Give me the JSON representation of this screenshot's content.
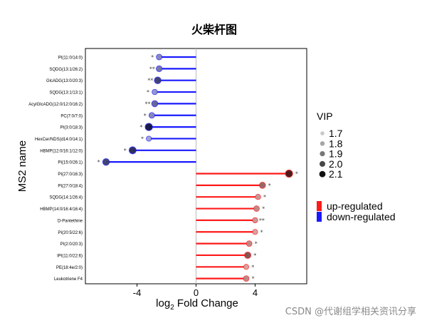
{
  "chart_data": {
    "type": "lollipop",
    "title": "火柴杆图",
    "xlabel_prefix": "log",
    "xlabel_sub": "2",
    "xlabel_suffix": " Fold Change",
    "ylabel": "MS2 name",
    "xlim": [
      -7.5,
      7.5
    ],
    "xticks": [
      -4,
      0,
      4
    ],
    "xtick_labels": [
      "-4",
      "0",
      "4"
    ],
    "grid": false,
    "legend_position": "right",
    "vip_legend": {
      "title": "VIP",
      "entries": [
        {
          "label": "1.7",
          "size": 1.7,
          "color": "#c8c8c8"
        },
        {
          "label": "1.8",
          "size": 1.8,
          "color": "#a6a6a6"
        },
        {
          "label": "1.9",
          "size": 1.9,
          "color": "#777777"
        },
        {
          "label": "2.0",
          "size": 2.0,
          "color": "#474747"
        },
        {
          "label": "2.1",
          "size": 2.1,
          "color": "#111111"
        }
      ]
    },
    "regulation_legend": {
      "entries": [
        {
          "label": "up-regulated",
          "color": "#ff1a1a"
        },
        {
          "label": "down-regulated",
          "color": "#1a1aff"
        }
      ]
    },
    "colors": {
      "up": "#ff1a1a",
      "down": "#1a1aff"
    },
    "points": [
      {
        "name": "PI(11:0/14:0)",
        "fc": -2.5,
        "vip": 1.8,
        "sig": "*",
        "reg": "down"
      },
      {
        "name": "SQDG(13:1/26:2)",
        "fc": -2.5,
        "vip": 1.85,
        "sig": "**",
        "reg": "down"
      },
      {
        "name": "GlcADG(13:0/20:3)",
        "fc": -2.6,
        "vip": 2.0,
        "sig": "**",
        "reg": "down"
      },
      {
        "name": "SQDG(13:1/13:1)",
        "fc": -2.8,
        "vip": 1.75,
        "sig": "*",
        "reg": "down"
      },
      {
        "name": "AcylGlcADG(12:0/12:0/16:2)",
        "fc": -2.8,
        "vip": 1.9,
        "sig": "**",
        "reg": "down"
      },
      {
        "name": "PC(7:0/7:0)",
        "fc": -3.0,
        "vip": 1.8,
        "sig": "*",
        "reg": "down"
      },
      {
        "name": "PI(3:0/18:3)",
        "fc": -3.2,
        "vip": 2.1,
        "sig": "*",
        "reg": "down"
      },
      {
        "name": "HexCer/NDS(d14:0/14:1)",
        "fc": -3.2,
        "vip": 1.7,
        "sig": "*",
        "reg": "down"
      },
      {
        "name": "HBMP(12:0/16:1/12:0)",
        "fc": -4.3,
        "vip": 2.05,
        "sig": "*",
        "reg": "down"
      },
      {
        "name": "PI(15:0/26:1)",
        "fc": -6.1,
        "vip": 2.0,
        "sig": "*",
        "reg": "down"
      },
      {
        "name": "PI(27:0/16:3)",
        "fc": 6.3,
        "vip": 2.1,
        "sig": "*",
        "reg": "up"
      },
      {
        "name": "PI(27:0/18:4)",
        "fc": 4.5,
        "vip": 1.9,
        "sig": "*",
        "reg": "up"
      },
      {
        "name": "SQDG(14:1/26:4)",
        "fc": 4.2,
        "vip": 1.75,
        "sig": "*",
        "reg": "up"
      },
      {
        "name": "HBMP(14:0/16:4/16:4)",
        "fc": 4.1,
        "vip": 1.8,
        "sig": "*",
        "reg": "up"
      },
      {
        "name": "D-Pantethine",
        "fc": 4.0,
        "vip": 1.75,
        "sig": "**",
        "reg": "up"
      },
      {
        "name": "PI(20:5/22:6)",
        "fc": 4.0,
        "vip": 1.7,
        "sig": "*",
        "reg": "up"
      },
      {
        "name": "PI(2:0/20:3)",
        "fc": 3.6,
        "vip": 1.8,
        "sig": "*",
        "reg": "up"
      },
      {
        "name": "IPI(11:0/22:6)",
        "fc": 3.5,
        "vip": 1.95,
        "sig": "*",
        "reg": "up"
      },
      {
        "name": "PE(18:4e/2:0)",
        "fc": 3.4,
        "vip": 1.7,
        "sig": "*",
        "reg": "up"
      },
      {
        "name": "Leukotriene F4",
        "fc": 3.4,
        "vip": 1.8,
        "sig": "*",
        "reg": "up"
      }
    ]
  },
  "watermark": "CSDN @代谢组学相关资讯分享"
}
